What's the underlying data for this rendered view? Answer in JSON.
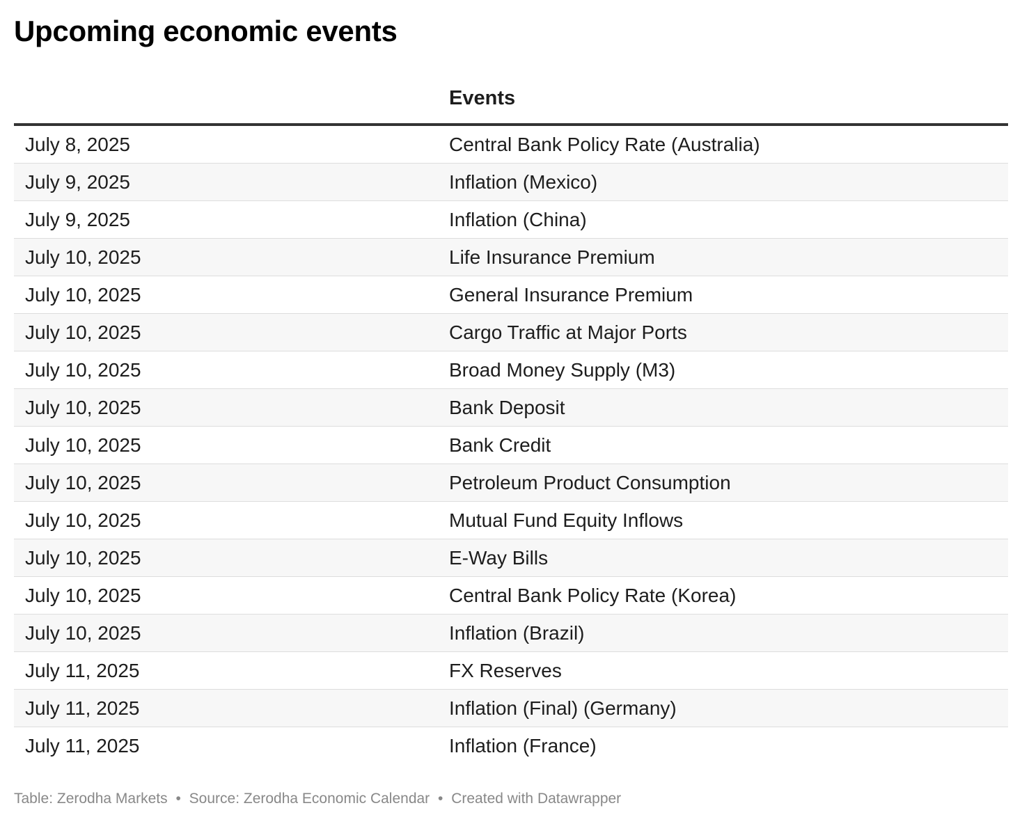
{
  "chart_data": {
    "type": "table",
    "title": "Upcoming economic events",
    "columns": [
      "",
      "Events"
    ],
    "rows": [
      {
        "date": "July 8, 2025",
        "event": "Central Bank Policy Rate (Australia)"
      },
      {
        "date": "July 9, 2025",
        "event": "Inflation (Mexico)"
      },
      {
        "date": "July 9, 2025",
        "event": "Inflation (China)"
      },
      {
        "date": "July 10, 2025",
        "event": "Life Insurance Premium"
      },
      {
        "date": "July 10, 2025",
        "event": "General Insurance Premium"
      },
      {
        "date": "July 10, 2025",
        "event": "Cargo Traffic at Major Ports"
      },
      {
        "date": "July 10, 2025",
        "event": "Broad Money Supply (M3)"
      },
      {
        "date": "July 10, 2025",
        "event": "Bank Deposit"
      },
      {
        "date": "July 10, 2025",
        "event": "Bank Credit"
      },
      {
        "date": "July 10, 2025",
        "event": "Petroleum Product Consumption"
      },
      {
        "date": "July 10, 2025",
        "event": "Mutual Fund Equity Inflows"
      },
      {
        "date": "July 10, 2025",
        "event": "E-Way Bills"
      },
      {
        "date": "July 10, 2025",
        "event": "Central Bank Policy Rate (Korea)"
      },
      {
        "date": "July 10, 2025",
        "event": "Inflation (Brazil)"
      },
      {
        "date": "July 11, 2025",
        "event": "FX Reserves"
      },
      {
        "date": "July 11, 2025",
        "event": "Inflation (Final) (Germany)"
      },
      {
        "date": "July 11, 2025",
        "event": "Inflation (France)"
      }
    ]
  },
  "footer": {
    "table_credit": "Table: Zerodha Markets",
    "source": "Source: Zerodha Economic Calendar",
    "created_with": "Created with Datawrapper",
    "separator": "•"
  },
  "colors": {
    "header_rule": "#333333",
    "row_divider": "#dddddd",
    "zebra_fill": "#f7f7f7",
    "footer_text": "#888888"
  }
}
